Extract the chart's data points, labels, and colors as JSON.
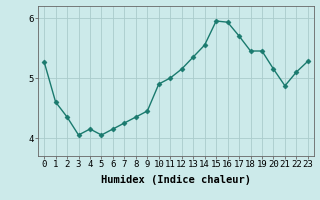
{
  "x": [
    0,
    1,
    2,
    3,
    4,
    5,
    6,
    7,
    8,
    9,
    10,
    11,
    12,
    13,
    14,
    15,
    16,
    17,
    18,
    19,
    20,
    21,
    22,
    23
  ],
  "y": [
    5.27,
    4.6,
    4.35,
    4.05,
    4.15,
    4.05,
    4.15,
    4.25,
    4.35,
    4.45,
    4.9,
    5.0,
    5.15,
    5.35,
    5.55,
    5.95,
    5.93,
    5.7,
    5.45,
    5.45,
    5.15,
    4.87,
    5.1,
    5.28
  ],
  "line_color": "#1a7a6e",
  "marker": "D",
  "marker_size": 2.5,
  "bg_color": "#cceaea",
  "grid_color": "#aacccc",
  "xlabel": "Humidex (Indice chaleur)",
  "ylim": [
    3.7,
    6.2
  ],
  "xlim": [
    -0.5,
    23.5
  ],
  "yticks": [
    4,
    5,
    6
  ],
  "xtick_labels": [
    "0",
    "1",
    "2",
    "3",
    "4",
    "5",
    "6",
    "7",
    "8",
    "9",
    "10",
    "11",
    "12",
    "13",
    "14",
    "15",
    "16",
    "17",
    "18",
    "19",
    "20",
    "21",
    "22",
    "23"
  ],
  "xlabel_fontsize": 7.5,
  "tick_fontsize": 6.5,
  "line_width": 1.0
}
